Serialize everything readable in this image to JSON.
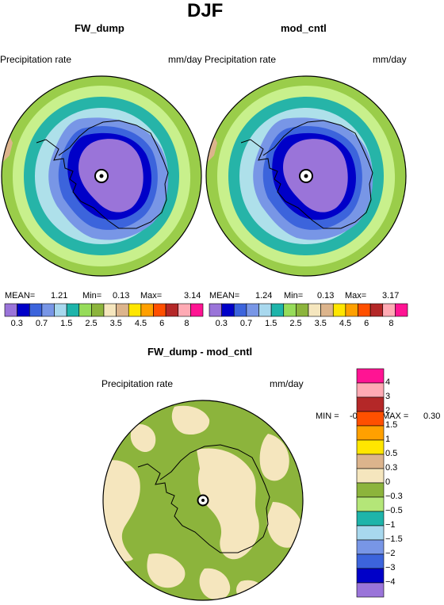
{
  "title": "DJF",
  "panels": [
    {
      "name": "FW_dump",
      "var_label": "Precipitation rate",
      "units": "mm/day",
      "stats": {
        "mean_label": "MEAN=",
        "mean": "1.21",
        "min_label": "Min=",
        "min": "0.13",
        "max_label": "Max=",
        "max": "3.14"
      }
    },
    {
      "name": "mod_cntl",
      "var_label": "Precipitation rate",
      "units": "mm/day",
      "stats": {
        "mean_label": "MEAN=",
        "mean": "1.24",
        "min_label": "Min=",
        "min": "0.13",
        "max_label": "Max=",
        "max": "3.17"
      }
    }
  ],
  "diff_panel": {
    "name": "FW_dump - mod_cntl",
    "var_label": "Precipitation rate",
    "units": "mm/day",
    "min_label": "MIN =",
    "min": "-0.36",
    "max_label": "MAX =",
    "max": "0.30"
  },
  "colorbar": {
    "colors": [
      "#9a74d9",
      "#0000c8",
      "#3c64dc",
      "#7896e6",
      "#a8d8ee",
      "#1eb4aa",
      "#96dc5a",
      "#8cb43c",
      "#f5e6be",
      "#dcb48c",
      "#ffe600",
      "#ffa000",
      "#ff5000",
      "#b42828",
      "#ffaab4",
      "#ff1493"
    ],
    "ticks": [
      "0.3",
      "0.7",
      "1.5",
      "2.5",
      "3.5",
      "4.5",
      "6",
      "8"
    ]
  },
  "diff_colorbar": {
    "colors": [
      "#ff1493",
      "#ffaab4",
      "#b42828",
      "#ff5000",
      "#ffa000",
      "#ffe600",
      "#dcb48c",
      "#f5e6be",
      "#8cb43c",
      "#b4e678",
      "#1eb4aa",
      "#a8d8ee",
      "#7896e6",
      "#3c64dc",
      "#0000c8",
      "#9a74d9"
    ],
    "ticks": [
      "4",
      "3",
      "2",
      "1.5",
      "1",
      "0.5",
      "0.3",
      "0",
      "−0.3",
      "−0.5",
      "−1",
      "−1.5",
      "−2",
      "−3",
      "−4"
    ]
  },
  "map_colors": {
    "ring1": "#9acd4a",
    "ring2": "#c8f08c",
    "ring3": "#26b4a8",
    "ring4": "#aee0ea",
    "ring5": "#7896e6",
    "ring6": "#3c64dc",
    "ring7": "#0000c8",
    "core": "#9a74d9",
    "land_patch": "#dcb48c",
    "diff_bg": "#8cb43c",
    "diff_patch": "#f5e6be"
  }
}
